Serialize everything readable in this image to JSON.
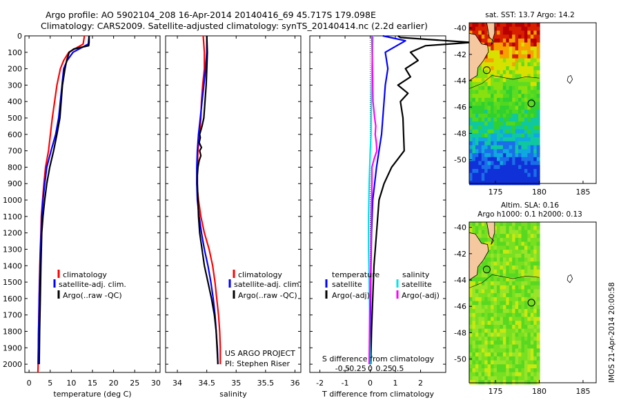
{
  "header": {
    "line1": "Argo profile: AO 5902104_208 16-Apr-2014 20140416_69 45.717S 179.098E",
    "line2": "Climatology: CARS2009. Satellite-adjusted climatology: synTS_20140414.nc (2.2d earlier)"
  },
  "colors": {
    "climatology": "#ff0000",
    "satellite": "#0000ff",
    "argo": "#000000",
    "sal_satellite": "#00e5ee",
    "sal_argo": "#ff00ff",
    "land": "#f5c8a0"
  },
  "chart_data": [
    {
      "type": "line",
      "id": "temperature",
      "xlabel": "temperature (deg C)",
      "xlim": [
        -1,
        31
      ],
      "xticks": [
        0,
        5,
        10,
        15,
        20,
        25,
        30
      ],
      "ylim": [
        2050,
        0
      ],
      "yticks": [
        0,
        100,
        200,
        300,
        400,
        500,
        600,
        700,
        800,
        900,
        1000,
        1100,
        1200,
        1300,
        1400,
        1500,
        1600,
        1700,
        1800,
        1900,
        2000
      ],
      "legend": [
        "climatology",
        "satellite-adj. clim.",
        "Argo(..raw -QC)"
      ],
      "series": [
        {
          "name": "climatology",
          "color": "#ff0000",
          "x": [
            13.1,
            12.8,
            9.4,
            8.2,
            7.4,
            6.6,
            5.5,
            4.6,
            3.9,
            3.5,
            3.2,
            2.9,
            2.8,
            2.65,
            2.55,
            2.45,
            2.38,
            2.3,
            2.25,
            2.2,
            2.15,
            2.1
          ],
          "y": [
            0,
            50,
            100,
            150,
            200,
            300,
            500,
            700,
            800,
            900,
            1000,
            1100,
            1200,
            1300,
            1400,
            1500,
            1600,
            1700,
            1800,
            1900,
            2000,
            2050
          ]
        },
        {
          "name": "satellite-adj. clim.",
          "color": "#0000ff",
          "x": [
            14.2,
            14.0,
            10.4,
            9.0,
            8.2,
            7.8,
            7.0,
            6.3,
            5.2,
            4.2,
            3.7,
            3.3,
            3.0,
            2.85,
            2.7,
            2.6,
            2.5,
            2.4,
            2.35,
            2.25,
            2.2,
            2.15
          ],
          "y": [
            0,
            50,
            100,
            150,
            200,
            300,
            500,
            600,
            700,
            800,
            900,
            1000,
            1100,
            1200,
            1300,
            1400,
            1500,
            1600,
            1700,
            1800,
            1900,
            2000
          ]
        },
        {
          "name": "Argo(..raw -QC)",
          "color": "#000000",
          "x": [
            14.2,
            14.2,
            14.1,
            10.6,
            9.5,
            8.9,
            8.5,
            7.9,
            7.3,
            6.6,
            5.8,
            4.9,
            4.2,
            3.7,
            3.3,
            3.0,
            2.8,
            2.65,
            2.5,
            2.4
          ],
          "y": [
            0,
            40,
            60,
            80,
            100,
            150,
            200,
            300,
            500,
            600,
            700,
            800,
            900,
            1000,
            1100,
            1200,
            1400,
            1600,
            1800,
            2000
          ]
        }
      ]
    },
    {
      "type": "line",
      "id": "salinity",
      "xlabel": "salinity",
      "xlim": [
        33.8,
        36.1
      ],
      "xticks": [
        34,
        34.5,
        35,
        35.5,
        36
      ],
      "ylim": [
        2050,
        0
      ],
      "legend": [
        "climatology",
        "satellite-adj. clim.",
        "Argo(..raw -QC)"
      ],
      "annotation": [
        "US ARGO PROJECT",
        "PI: Stephen Riser"
      ],
      "series": [
        {
          "name": "climatology",
          "color": "#ff0000",
          "x": [
            34.44,
            34.46,
            34.46,
            34.43,
            34.41,
            34.4,
            34.38,
            34.35,
            34.34,
            34.33,
            34.36,
            34.4,
            34.46,
            34.54,
            34.6,
            34.64,
            34.67,
            34.7,
            34.72,
            34.73,
            34.73
          ],
          "y": [
            0,
            100,
            200,
            300,
            400,
            500,
            600,
            700,
            800,
            900,
            1000,
            1100,
            1200,
            1300,
            1400,
            1500,
            1600,
            1700,
            1800,
            1900,
            2000
          ]
        },
        {
          "name": "satellite-adj. clim.",
          "color": "#0000ff",
          "x": [
            34.5,
            34.5,
            34.48,
            34.45,
            34.42,
            34.39,
            34.36,
            34.34,
            34.33,
            34.33,
            34.34,
            34.37,
            34.41,
            34.46,
            34.52,
            34.57,
            34.61,
            34.64,
            34.66,
            34.68,
            34.69
          ],
          "y": [
            0,
            100,
            200,
            300,
            400,
            500,
            600,
            700,
            800,
            900,
            1000,
            1100,
            1200,
            1300,
            1400,
            1500,
            1600,
            1700,
            1800,
            1900,
            2000
          ]
        },
        {
          "name": "Argo(..raw -QC)",
          "color": "#000000",
          "x": [
            34.5,
            34.51,
            34.5,
            34.49,
            34.47,
            34.45,
            34.42,
            34.38,
            34.39,
            34.37,
            34.41,
            34.38,
            34.4,
            34.37,
            34.35,
            34.34,
            34.34,
            34.35,
            34.36,
            34.38,
            34.42,
            34.46,
            34.52,
            34.58,
            34.63,
            34.66,
            34.69
          ],
          "y": [
            0,
            100,
            200,
            300,
            400,
            500,
            550,
            600,
            620,
            650,
            680,
            700,
            730,
            760,
            800,
            850,
            900,
            1000,
            1100,
            1200,
            1300,
            1400,
            1500,
            1600,
            1700,
            1800,
            2000
          ]
        }
      ]
    },
    {
      "type": "line",
      "id": "difference",
      "xlabel": "T difference from climatology",
      "xlabel_top": "S difference from climatology",
      "xlim": [
        -2.4,
        3.0
      ],
      "xticks": [
        -2,
        -1,
        0,
        1,
        2
      ],
      "sticks": [
        -0.5,
        -0.25,
        0,
        0.25,
        0.5
      ],
      "sticklabels": [
        "-0.5",
        "-0.25",
        "0",
        "0.25",
        "0.5"
      ],
      "ylim": [
        2050,
        0
      ],
      "legend_left": {
        "title": "temperature",
        "items": [
          "satellite",
          "Argo(-adj)"
        ]
      },
      "legend_right": {
        "title": "salinity",
        "items": [
          "satellite",
          "Argo(-adj)"
        ]
      },
      "series": [
        {
          "name": "temperature satellite",
          "color": "#0000ff",
          "x": [
            0.5,
            1.4,
            0.6,
            0.7,
            0.6,
            0.5,
            0.45,
            0.35,
            0.25,
            0.1,
            0.05,
            0.02,
            0,
            0
          ],
          "y": [
            0,
            30,
            100,
            200,
            300,
            500,
            600,
            700,
            800,
            1000,
            1200,
            1500,
            1800,
            2000
          ]
        },
        {
          "name": "temperature Argo(-adj)",
          "color": "#000000",
          "x": [
            1.1,
            1.2,
            4.0,
            2.2,
            1.6,
            1.9,
            1.4,
            1.6,
            1.1,
            1.5,
            1.2,
            1.3,
            1.35,
            0.85,
            0.55,
            0.35,
            0.25,
            0.15,
            0.1,
            0.05,
            0.02
          ],
          "y": [
            0,
            10,
            40,
            60,
            100,
            150,
            200,
            250,
            300,
            350,
            400,
            500,
            700,
            800,
            900,
            1000,
            1200,
            1400,
            1600,
            1800,
            2000
          ]
        },
        {
          "name": "salinity satellite",
          "color": "#00e5ee",
          "x": [
            0.05,
            0.04,
            0.03,
            0.02,
            0.015,
            0.0,
            -0.02,
            -0.03,
            -0.03,
            -0.02,
            -0.01,
            -0.01,
            -0.005,
            0
          ],
          "y": [
            0,
            100,
            200,
            400,
            600,
            700,
            900,
            1100,
            1300,
            1500,
            1700,
            1800,
            1900,
            2000
          ]
        },
        {
          "name": "salinity Argo(-adj)",
          "color": "#ff00ff",
          "x": [
            0.03,
            0.04,
            0.05,
            0.08,
            0.1,
            0.09,
            0.11,
            0.12,
            0.07,
            0.03,
            0.03,
            0.02,
            0.01,
            -0.01,
            -0.02
          ],
          "y": [
            0,
            200,
            400,
            500,
            550,
            600,
            650,
            700,
            750,
            800,
            900,
            1100,
            1400,
            1700,
            2000
          ]
        }
      ]
    },
    {
      "type": "heatmap",
      "id": "map-sst",
      "title": "sat. SST: 13.7 Argo: 14.2",
      "xlim": [
        172,
        186.5
      ],
      "ylim": [
        -51.8,
        -39.6
      ],
      "xticks": [
        175,
        180,
        185
      ],
      "yticks": [
        -40,
        -42,
        -44,
        -46,
        -48,
        -50
      ],
      "marker": {
        "lon": 179.1,
        "lat": -45.72
      }
    },
    {
      "type": "heatmap",
      "id": "map-sla",
      "title": "Altim. SLA: 0.16",
      "subtitle": "Argo h1000: 0.1 h2000: 0.13",
      "xlim": [
        172,
        186.5
      ],
      "ylim": [
        -51.8,
        -39.6
      ],
      "xticks": [
        175,
        180,
        185
      ],
      "yticks": [
        -40,
        -42,
        -44,
        -46,
        -48,
        -50
      ],
      "marker": {
        "lon": 179.1,
        "lat": -45.72
      }
    }
  ],
  "side_label": "IMOS 21-Apr-2014 20:00:58"
}
